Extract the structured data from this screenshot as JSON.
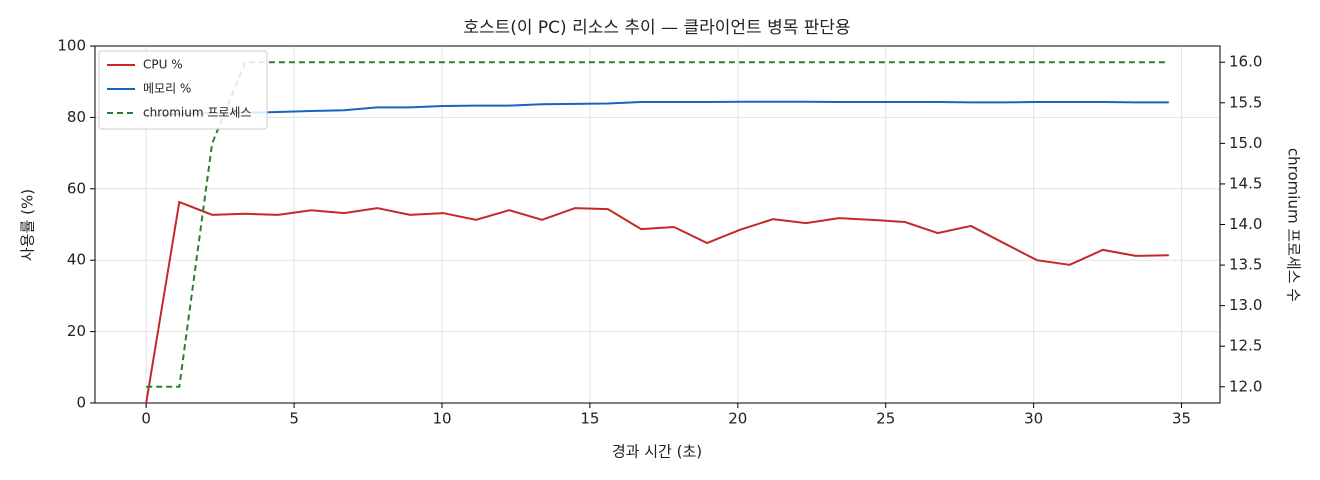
{
  "chart_data": {
    "type": "line",
    "title": "호스트(이 PC) 리소스 추이 — 클라이언트 병목 판단용",
    "x_label": "경과 시간 (초)",
    "y_label": "사용률 (%)",
    "y2_label": "chromium 프로세스 수",
    "x": [
      0,
      1.12,
      2.23,
      3.35,
      4.46,
      5.58,
      6.69,
      7.81,
      8.92,
      10.04,
      11.15,
      12.27,
      13.38,
      14.5,
      15.61,
      16.73,
      17.84,
      18.96,
      20.07,
      21.19,
      22.3,
      23.42,
      24.53,
      25.65,
      26.76,
      27.88,
      28.99,
      30.11,
      31.22,
      32.34,
      33.45,
      34.57
    ],
    "series": [
      {
        "name": "CPU %",
        "color": "#c62828",
        "dashed": false,
        "axis": "y",
        "values": [
          0,
          56.3,
          52.7,
          53,
          52.7,
          54,
          53.2,
          54.6,
          52.7,
          53.2,
          51.3,
          54,
          51.3,
          54.6,
          54.3,
          48.7,
          49.3,
          44.8,
          48.5,
          51.5,
          50.4,
          51.8,
          51.3,
          50.7,
          47.6,
          49.6,
          44.8,
          40,
          38.7,
          42.9,
          41.2,
          41.4
        ]
      },
      {
        "name": "메모리 %",
        "color": "#1565c0",
        "dashed": false,
        "axis": "y",
        "values": [
          80.5,
          81,
          81.2,
          81.3,
          81.5,
          81.8,
          82,
          82.8,
          82.8,
          83.2,
          83.3,
          83.3,
          83.7,
          83.8,
          83.9,
          84.3,
          84.3,
          84.3,
          84.4,
          84.4,
          84.4,
          84.3,
          84.3,
          84.3,
          84.3,
          84.2,
          84.2,
          84.3,
          84.3,
          84.3,
          84.2,
          84.2
        ]
      },
      {
        "name": "chromium 프로세스",
        "color": "#2e7d32",
        "dashed": true,
        "axis": "y2",
        "values": [
          12,
          12,
          15,
          16,
          16,
          16,
          16,
          16,
          16,
          16,
          16,
          16,
          16,
          16,
          16,
          16,
          16,
          16,
          16,
          16,
          16,
          16,
          16,
          16,
          16,
          16,
          16,
          16,
          16,
          16,
          16,
          16
        ]
      }
    ],
    "xlim": [
      -1.73,
      36.3
    ],
    "xticks": [
      0,
      5,
      10,
      15,
      20,
      25,
      30,
      35
    ],
    "ylim": [
      0,
      100
    ],
    "yticks": [
      0,
      20,
      40,
      60,
      80,
      100
    ],
    "y2lim": [
      11.8,
      16.2
    ],
    "y2ticks": [
      {
        "value": 12,
        "label": "12.0"
      },
      {
        "value": 12.5,
        "label": "12.5"
      },
      {
        "value": 13,
        "label": "13.0"
      },
      {
        "value": 13.5,
        "label": "13.5"
      },
      {
        "value": 14,
        "label": "14.0"
      },
      {
        "value": 14.5,
        "label": "14.5"
      },
      {
        "value": 15,
        "label": "15.0"
      },
      {
        "value": 15.5,
        "label": "15.5"
      },
      {
        "value": 16,
        "label": "16.0"
      }
    ],
    "grid": true,
    "legend": "upper-left"
  }
}
